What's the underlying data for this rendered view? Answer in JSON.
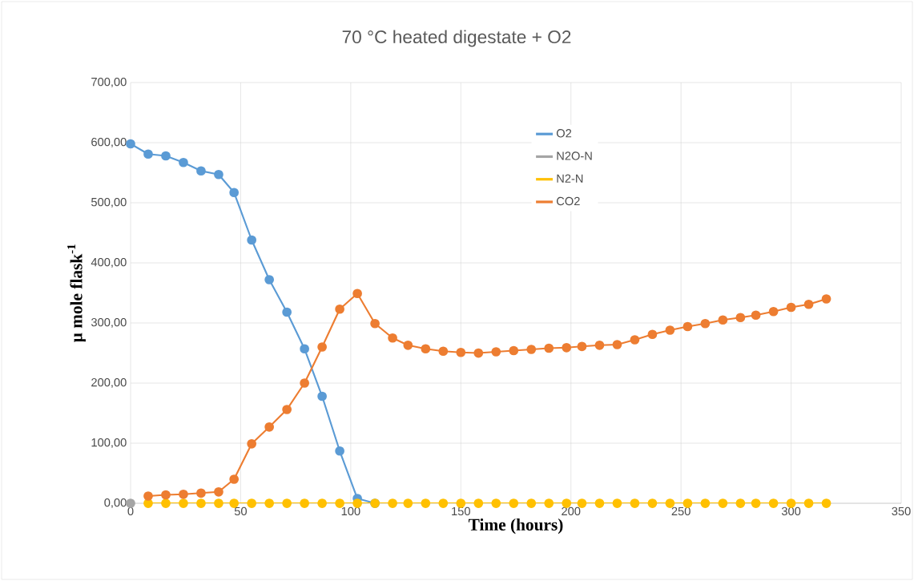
{
  "chart_data": {
    "type": "line",
    "title": "70 °C heated digestate + O2",
    "xlabel": "Time (hours)",
    "ylabel": "μ mole flask$^{-1}$",
    "x": [
      0,
      8,
      16,
      24,
      32,
      40,
      47,
      55,
      63,
      71,
      79,
      87,
      95,
      103,
      111,
      119,
      126,
      134,
      142,
      150,
      158,
      166,
      174,
      182,
      190,
      198,
      205,
      213,
      221,
      229,
      237,
      245,
      253,
      261,
      269,
      277,
      284,
      292,
      300,
      308,
      316
    ],
    "series": [
      {
        "name": "O2",
        "color": "#5b9bd5",
        "values": [
          598,
          581,
          578,
          567,
          553,
          547,
          517,
          438,
          372,
          318,
          257,
          178,
          87,
          8,
          0,
          null,
          null,
          null,
          null,
          null,
          null,
          null,
          null,
          null,
          null,
          null,
          null,
          null,
          null,
          null,
          null,
          null,
          null,
          null,
          null,
          null,
          null,
          null,
          null,
          null,
          null
        ]
      },
      {
        "name": "N2O-N",
        "color": "#a5a5a5",
        "values": [
          0,
          null,
          null,
          null,
          null,
          null,
          null,
          null,
          null,
          null,
          null,
          null,
          null,
          null,
          null,
          null,
          null,
          null,
          null,
          null,
          null,
          null,
          null,
          null,
          null,
          null,
          null,
          null,
          null,
          null,
          null,
          null,
          null,
          null,
          null,
          null,
          null,
          null,
          null,
          null,
          null
        ]
      },
      {
        "name": "N2-N",
        "color": "#ffc000",
        "values": [
          null,
          0,
          0,
          0,
          0,
          0,
          0,
          0,
          0,
          0,
          0,
          0,
          0,
          0,
          0,
          0,
          0,
          0,
          0,
          0,
          0,
          0,
          0,
          0,
          0,
          0,
          0,
          0,
          0,
          0,
          0,
          0,
          0,
          0,
          0,
          0,
          0,
          0,
          0,
          0,
          0
        ]
      },
      {
        "name": "CO2",
        "color": "#ed7d31",
        "values": [
          null,
          12,
          14,
          15,
          17,
          19,
          40,
          99,
          127,
          156,
          200,
          260,
          323,
          349,
          299,
          275,
          263,
          257,
          253,
          251,
          250,
          252,
          254,
          256,
          258,
          259,
          261,
          263,
          264,
          272,
          281,
          288,
          294,
          299,
          305,
          309,
          313,
          319,
          326,
          331,
          340
        ]
      }
    ],
    "xlim": [
      0,
      350
    ],
    "xticks": [
      0,
      50,
      100,
      150,
      200,
      250,
      300,
      350
    ],
    "ylim": [
      0,
      700
    ],
    "yticks": [
      {
        "value": 0,
        "label": "0,00"
      },
      {
        "value": 100,
        "label": "100,00"
      },
      {
        "value": 200,
        "label": "200,00"
      },
      {
        "value": 300,
        "label": "300,00"
      },
      {
        "value": 400,
        "label": "400,00"
      },
      {
        "value": 500,
        "label": "500,00"
      },
      {
        "value": 600,
        "label": "600,00"
      },
      {
        "value": 700,
        "label": "700,00"
      }
    ],
    "grid": true,
    "legend": "top",
    "marker": "circle",
    "line_style": "solid"
  }
}
